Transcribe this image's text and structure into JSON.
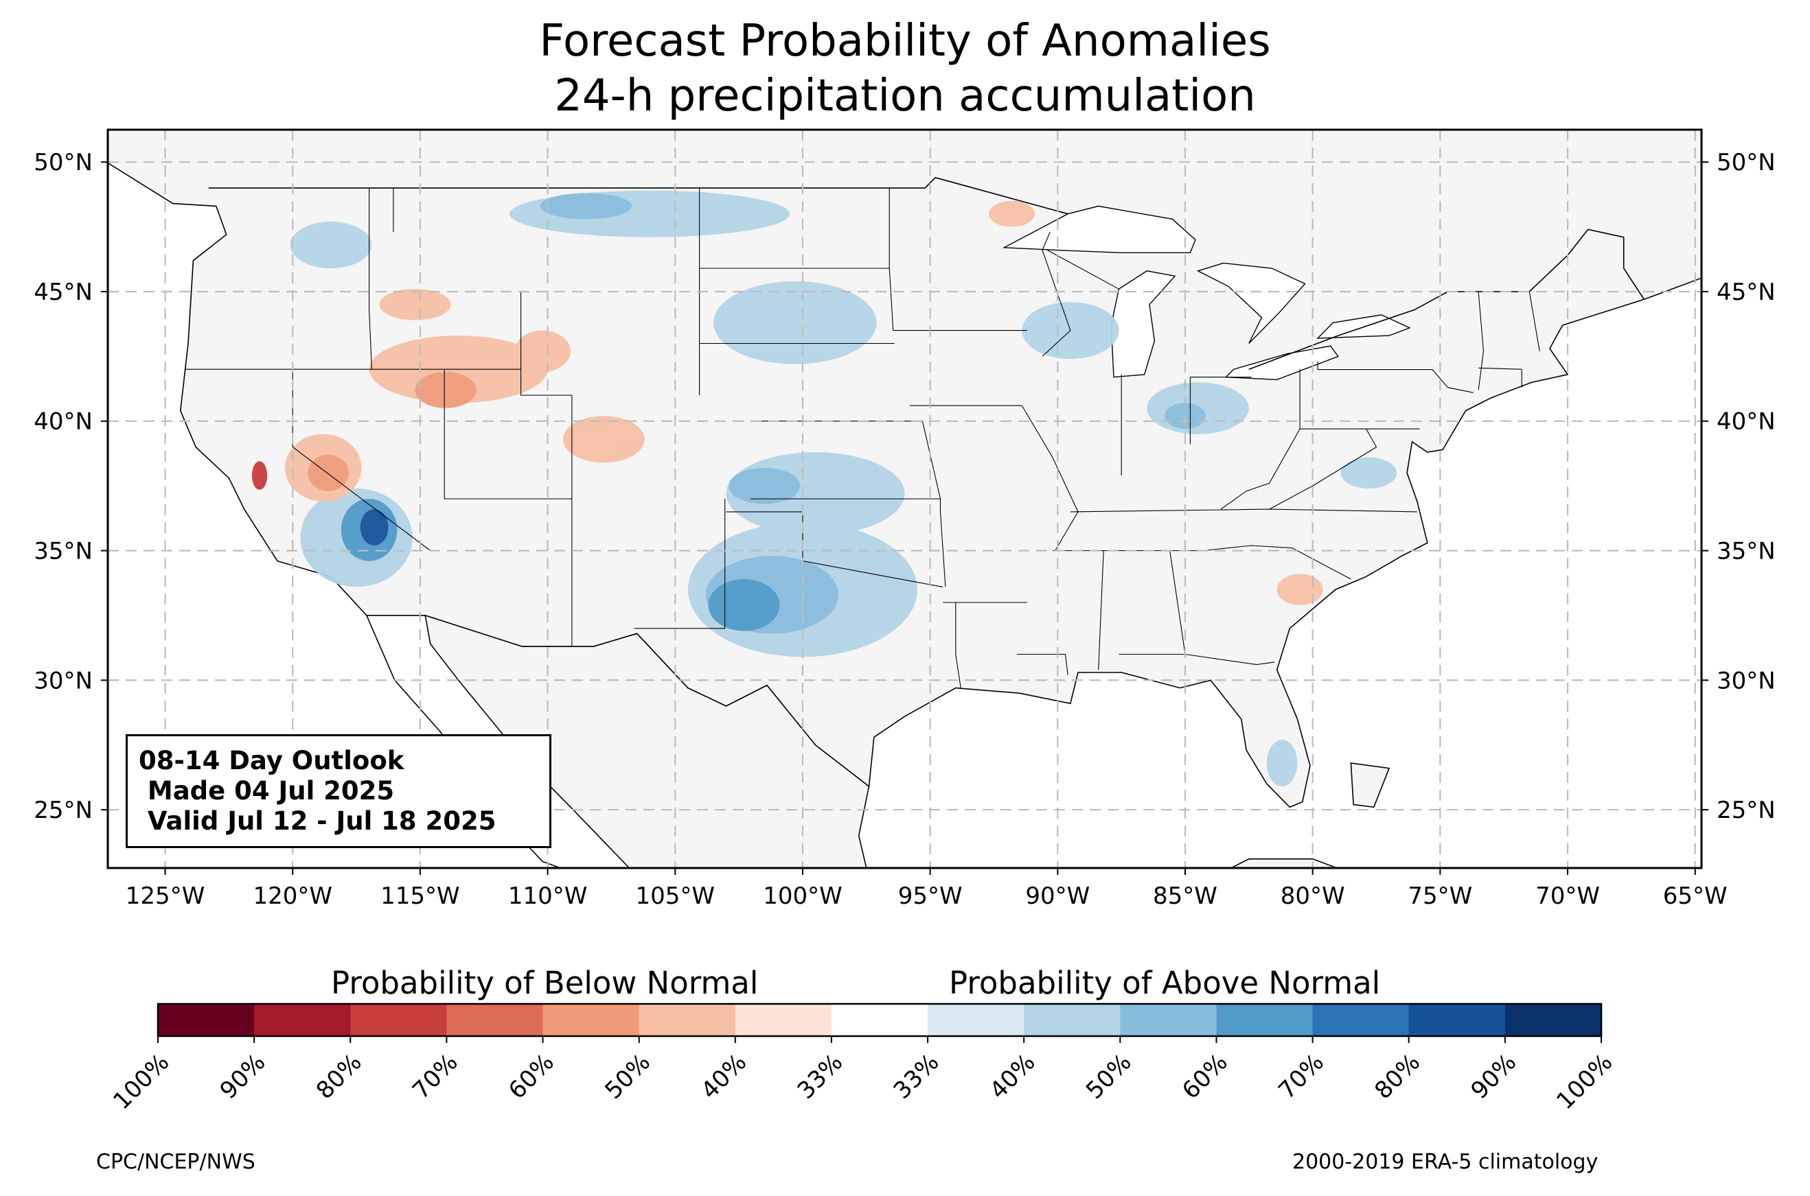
{
  "title_line1": "Forecast Probability of Anomalies",
  "title_line2": "24-h precipitation accumulation",
  "map": {
    "lon_range": [
      -127.25,
      -64.75
    ],
    "lat_range": [
      22.75,
      51.25
    ],
    "lon_ticks": [
      {
        "value": -125,
        "label": "125°W"
      },
      {
        "value": -120,
        "label": "120°W"
      },
      {
        "value": -115,
        "label": "115°W"
      },
      {
        "value": -110,
        "label": "110°W"
      },
      {
        "value": -105,
        "label": "105°W"
      },
      {
        "value": -100,
        "label": "100°W"
      },
      {
        "value": -95,
        "label": "95°W"
      },
      {
        "value": -90,
        "label": "90°W"
      },
      {
        "value": -85,
        "label": "85°W"
      },
      {
        "value": -80,
        "label": "80°W"
      },
      {
        "value": -75,
        "label": "75°W"
      },
      {
        "value": -70,
        "label": "70°W"
      },
      {
        "value": -65,
        "label": "65°W"
      }
    ],
    "lat_ticks": [
      {
        "value": 25,
        "label": "25°N"
      },
      {
        "value": 30,
        "label": "30°N"
      },
      {
        "value": 35,
        "label": "35°N"
      },
      {
        "value": 40,
        "label": "40°N"
      },
      {
        "value": 45,
        "label": "45°N"
      },
      {
        "value": 50,
        "label": "50°N"
      }
    ],
    "gridlines": true,
    "land_color": "#f5f5f5",
    "ocean_color": "#ffffff",
    "anomaly_regions": [
      {
        "category": "above",
        "level": "40-50%",
        "lon": -100,
        "lat": 33.5,
        "rx": 4.5,
        "ry": 2.6
      },
      {
        "category": "above",
        "level": "50-60%",
        "lon": -101.2,
        "lat": 33.3,
        "rx": 2.6,
        "ry": 1.5
      },
      {
        "category": "above",
        "level": "60-70%",
        "lon": -102.3,
        "lat": 32.9,
        "rx": 1.4,
        "ry": 1.0
      },
      {
        "category": "above",
        "level": "40-50%",
        "lon": -99.5,
        "lat": 37.2,
        "rx": 3.5,
        "ry": 1.6
      },
      {
        "category": "above",
        "level": "50-60%",
        "lon": -101.5,
        "lat": 37.5,
        "rx": 1.4,
        "ry": 0.7
      },
      {
        "category": "above",
        "level": "40-50%",
        "lon": -100.3,
        "lat": 43.8,
        "rx": 3.2,
        "ry": 1.6
      },
      {
        "category": "above",
        "level": "40-50%",
        "lon": -106,
        "lat": 48,
        "rx": 5.5,
        "ry": 0.9
      },
      {
        "category": "above",
        "level": "50-60%",
        "lon": -108.5,
        "lat": 48.3,
        "rx": 1.8,
        "ry": 0.5
      },
      {
        "category": "above",
        "level": "40-50%",
        "lon": -118.5,
        "lat": 46.8,
        "rx": 1.6,
        "ry": 0.9
      },
      {
        "category": "above",
        "level": "40-50%",
        "lon": -89.5,
        "lat": 43.5,
        "rx": 1.9,
        "ry": 1.1
      },
      {
        "category": "above",
        "level": "40-50%",
        "lon": -84.5,
        "lat": 40.5,
        "rx": 2.0,
        "ry": 1.0
      },
      {
        "category": "above",
        "level": "50-60%",
        "lon": -85.0,
        "lat": 40.2,
        "rx": 0.8,
        "ry": 0.5
      },
      {
        "category": "above",
        "level": "40-50%",
        "lon": -77.8,
        "lat": 38.0,
        "rx": 1.1,
        "ry": 0.6
      },
      {
        "category": "above",
        "level": "40-50%",
        "lon": -81.2,
        "lat": 26.8,
        "rx": 0.6,
        "ry": 0.9
      },
      {
        "category": "above",
        "level": "40-50%",
        "lon": -117.5,
        "lat": 35.5,
        "rx": 2.2,
        "ry": 1.9
      },
      {
        "category": "above",
        "level": "60-70%",
        "lon": -117.0,
        "lat": 35.8,
        "rx": 1.1,
        "ry": 1.2
      },
      {
        "category": "above",
        "level": "80-90%",
        "lon": -116.8,
        "lat": 35.9,
        "rx": 0.55,
        "ry": 0.7
      },
      {
        "category": "below",
        "level": "40-50%",
        "lon": -113.5,
        "lat": 42.0,
        "rx": 3.5,
        "ry": 1.3
      },
      {
        "category": "below",
        "level": "50-60%",
        "lon": -114.0,
        "lat": 41.2,
        "rx": 1.2,
        "ry": 0.7
      },
      {
        "category": "below",
        "level": "40-50%",
        "lon": -118.8,
        "lat": 38.2,
        "rx": 1.5,
        "ry": 1.3
      },
      {
        "category": "below",
        "level": "50-60%",
        "lon": -118.6,
        "lat": 38.0,
        "rx": 0.8,
        "ry": 0.7
      },
      {
        "category": "below",
        "level": "40-50%",
        "lon": -107.8,
        "lat": 39.3,
        "rx": 1.6,
        "ry": 0.9
      },
      {
        "category": "below",
        "level": "40-50%",
        "lon": -115.2,
        "lat": 44.5,
        "rx": 1.4,
        "ry": 0.6
      },
      {
        "category": "below",
        "level": "40-50%",
        "lon": -110.2,
        "lat": 42.7,
        "rx": 1.1,
        "ry": 0.8
      },
      {
        "category": "below",
        "level": "40-50%",
        "lon": -91.8,
        "lat": 48.0,
        "rx": 0.9,
        "ry": 0.5
      },
      {
        "category": "below",
        "level": "40-50%",
        "lon": -80.5,
        "lat": 33.5,
        "rx": 0.9,
        "ry": 0.6
      },
      {
        "category": "below",
        "level": "70-80%",
        "lon": -121.3,
        "lat": 37.9,
        "rx": 0.3,
        "ry": 0.55
      }
    ]
  },
  "outlook_box": {
    "line1": "08-14 Day Outlook",
    "line2": " Made 04 Jul 2025",
    "line3": " Valid Jul 12 - Jul 18 2025"
  },
  "colorbar": {
    "below_label": "Probability of Below Normal",
    "above_label": "Probability of Above Normal",
    "colors": [
      "#67001f",
      "#a51b2b",
      "#c73d3c",
      "#dc6b58",
      "#ef9b7a",
      "#f7c0a5",
      "#fbe4d6",
      "#ffffff",
      "#dbe9f2",
      "#b3d4e7",
      "#88bcdc",
      "#4f9ac9",
      "#2b73b4",
      "#15529a",
      "#0a316b"
    ],
    "tick_labels": [
      "100%",
      "90%",
      "80%",
      "70%",
      "60%",
      "50%",
      "40%",
      "33%",
      "33%",
      "40%",
      "50%",
      "60%",
      "70%",
      "80%",
      "90%",
      "100%"
    ]
  },
  "credit_left": "CPC/NCEP/NWS",
  "credit_right": "2000-2019 ERA-5 climatology"
}
